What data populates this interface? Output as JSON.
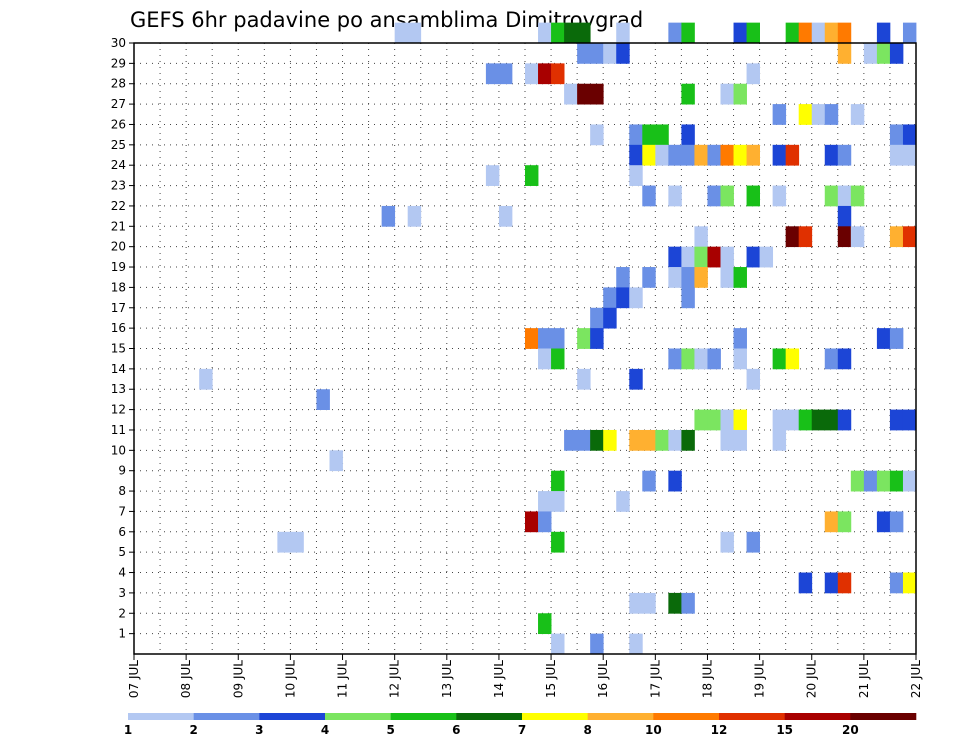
{
  "chart_data": {
    "type": "heatmap",
    "title": "GEFS 6hr padavine po ansamblima Dimitrovgrad",
    "x_tick_labels": [
      "07 JUL",
      "08 JUL",
      "09 JUL",
      "10 JUL",
      "11 JUL",
      "12 JUL",
      "13 JUL",
      "14 JUL",
      "15 JUL",
      "16 JUL",
      "17 JUL",
      "18 JUL",
      "19 JUL",
      "20 JUL",
      "21 JUL",
      "22 JUL"
    ],
    "y_tick_labels": [
      "1",
      "2",
      "3",
      "4",
      "5",
      "6",
      "7",
      "8",
      "9",
      "10",
      "11",
      "12",
      "13",
      "14",
      "15",
      "16",
      "17",
      "18",
      "19",
      "20",
      "21",
      "22",
      "23",
      "24",
      "25",
      "26",
      "27",
      "28",
      "29",
      "30"
    ],
    "xlim_days": [
      7,
      22
    ],
    "time_step_hours": 6,
    "colorbar": {
      "labels": [
        "1",
        "2",
        "3",
        "4",
        "5",
        "6",
        "7",
        "8",
        "10",
        "12",
        "15",
        "20"
      ],
      "colors": [
        "#b3c8f2",
        "#6a90e6",
        "#1c45d6",
        "#7be560",
        "#18c018",
        "#0a6a0a",
        "#ffff00",
        "#ffb030",
        "#ff7a00",
        "#e03000",
        "#a80000",
        "#6a0000"
      ]
    },
    "grid": true,
    "cell_format": "[day_start, member, color_index]",
    "cells": [
      [
        12.0,
        30,
        0
      ],
      [
        12.25,
        30,
        0
      ],
      [
        14.75,
        30,
        0
      ],
      [
        15.0,
        30,
        4
      ],
      [
        15.25,
        30,
        5
      ],
      [
        15.5,
        30,
        5
      ],
      [
        16.25,
        30,
        0
      ],
      [
        17.25,
        30,
        1
      ],
      [
        17.5,
        30,
        4
      ],
      [
        18.5,
        30,
        2
      ],
      [
        18.75,
        30,
        4
      ],
      [
        19.5,
        30,
        4
      ],
      [
        19.75,
        30,
        8
      ],
      [
        20.0,
        30,
        0
      ],
      [
        20.25,
        30,
        7
      ],
      [
        20.5,
        30,
        8
      ],
      [
        21.25,
        30,
        2
      ],
      [
        21.75,
        30,
        1
      ],
      [
        15.5,
        29,
        1
      ],
      [
        15.75,
        29,
        1
      ],
      [
        16.0,
        29,
        0
      ],
      [
        16.25,
        29,
        2
      ],
      [
        20.5,
        29,
        7
      ],
      [
        21.0,
        29,
        0
      ],
      [
        21.25,
        29,
        3
      ],
      [
        21.5,
        29,
        2
      ],
      [
        13.75,
        28,
        1
      ],
      [
        14.0,
        28,
        1
      ],
      [
        14.5,
        28,
        0
      ],
      [
        14.75,
        28,
        10
      ],
      [
        15.0,
        28,
        9
      ],
      [
        18.75,
        28,
        0
      ],
      [
        15.25,
        27,
        0
      ],
      [
        15.5,
        27,
        11
      ],
      [
        15.75,
        27,
        11
      ],
      [
        17.5,
        27,
        4
      ],
      [
        18.25,
        27,
        0
      ],
      [
        18.5,
        27,
        3
      ],
      [
        19.25,
        26,
        1
      ],
      [
        19.75,
        26,
        6
      ],
      [
        20.0,
        26,
        0
      ],
      [
        20.25,
        26,
        1
      ],
      [
        20.75,
        26,
        0
      ],
      [
        15.75,
        25,
        0
      ],
      [
        16.5,
        25,
        1
      ],
      [
        16.75,
        25,
        4
      ],
      [
        17.0,
        25,
        4
      ],
      [
        17.5,
        25,
        2
      ],
      [
        21.5,
        25,
        1
      ],
      [
        21.75,
        25,
        2
      ],
      [
        16.5,
        24,
        2
      ],
      [
        16.75,
        24,
        6
      ],
      [
        17.0,
        24,
        0
      ],
      [
        17.25,
        24,
        1
      ],
      [
        17.5,
        24,
        1
      ],
      [
        17.75,
        24,
        7
      ],
      [
        18.0,
        24,
        1
      ],
      [
        18.25,
        24,
        8
      ],
      [
        18.5,
        24,
        6
      ],
      [
        18.75,
        24,
        7
      ],
      [
        19.25,
        24,
        2
      ],
      [
        19.5,
        24,
        9
      ],
      [
        20.25,
        24,
        2
      ],
      [
        20.5,
        24,
        1
      ],
      [
        21.5,
        24,
        0
      ],
      [
        21.75,
        24,
        0
      ],
      [
        13.75,
        23,
        0
      ],
      [
        14.5,
        23,
        4
      ],
      [
        16.5,
        23,
        0
      ],
      [
        16.75,
        22,
        1
      ],
      [
        17.25,
        22,
        0
      ],
      [
        18.0,
        22,
        1
      ],
      [
        18.25,
        22,
        3
      ],
      [
        18.75,
        22,
        4
      ],
      [
        19.25,
        22,
        0
      ],
      [
        20.25,
        22,
        3
      ],
      [
        20.5,
        22,
        0
      ],
      [
        20.75,
        22,
        3
      ],
      [
        11.75,
        21,
        1
      ],
      [
        12.25,
        21,
        0
      ],
      [
        14.0,
        21,
        0
      ],
      [
        20.5,
        21,
        2
      ],
      [
        17.75,
        20,
        0
      ],
      [
        19.5,
        20,
        11
      ],
      [
        19.75,
        20,
        9
      ],
      [
        20.5,
        20,
        11
      ],
      [
        20.75,
        20,
        0
      ],
      [
        21.5,
        20,
        7
      ],
      [
        21.75,
        20,
        9
      ],
      [
        17.25,
        19,
        2
      ],
      [
        17.5,
        19,
        0
      ],
      [
        17.75,
        19,
        3
      ],
      [
        18.0,
        19,
        10
      ],
      [
        18.25,
        19,
        0
      ],
      [
        18.75,
        19,
        2
      ],
      [
        19.0,
        19,
        0
      ],
      [
        16.25,
        18,
        1
      ],
      [
        16.75,
        18,
        1
      ],
      [
        17.25,
        18,
        0
      ],
      [
        17.5,
        18,
        1
      ],
      [
        17.75,
        18,
        7
      ],
      [
        18.25,
        18,
        0
      ],
      [
        18.5,
        18,
        4
      ],
      [
        16.0,
        17,
        1
      ],
      [
        16.25,
        17,
        2
      ],
      [
        16.5,
        17,
        0
      ],
      [
        17.5,
        17,
        1
      ],
      [
        15.75,
        16,
        1
      ],
      [
        16.0,
        16,
        2
      ],
      [
        14.5,
        15,
        8
      ],
      [
        14.75,
        15,
        1
      ],
      [
        15.0,
        15,
        1
      ],
      [
        15.5,
        15,
        3
      ],
      [
        15.75,
        15,
        2
      ],
      [
        18.5,
        15,
        1
      ],
      [
        21.25,
        15,
        2
      ],
      [
        21.5,
        15,
        1
      ],
      [
        14.75,
        14,
        0
      ],
      [
        15.0,
        14,
        4
      ],
      [
        17.25,
        14,
        1
      ],
      [
        17.5,
        14,
        3
      ],
      [
        17.75,
        14,
        0
      ],
      [
        18.0,
        14,
        1
      ],
      [
        18.5,
        14,
        0
      ],
      [
        19.25,
        14,
        4
      ],
      [
        19.5,
        14,
        6
      ],
      [
        20.25,
        14,
        1
      ],
      [
        20.5,
        14,
        2
      ],
      [
        8.25,
        13,
        0
      ],
      [
        15.5,
        13,
        0
      ],
      [
        16.5,
        13,
        2
      ],
      [
        18.75,
        13,
        0
      ],
      [
        10.5,
        12,
        1
      ],
      [
        17.75,
        11,
        3
      ],
      [
        18.0,
        11,
        3
      ],
      [
        18.25,
        11,
        0
      ],
      [
        18.5,
        11,
        6
      ],
      [
        19.25,
        11,
        0
      ],
      [
        19.5,
        11,
        0
      ],
      [
        19.75,
        11,
        4
      ],
      [
        20.0,
        11,
        5
      ],
      [
        20.25,
        11,
        5
      ],
      [
        20.5,
        11,
        2
      ],
      [
        21.5,
        11,
        2
      ],
      [
        21.75,
        11,
        2
      ],
      [
        15.25,
        10,
        1
      ],
      [
        15.5,
        10,
        1
      ],
      [
        15.75,
        10,
        5
      ],
      [
        16.0,
        10,
        6
      ],
      [
        16.5,
        10,
        7
      ],
      [
        16.75,
        10,
        7
      ],
      [
        17.0,
        10,
        3
      ],
      [
        17.25,
        10,
        0
      ],
      [
        17.5,
        10,
        5
      ],
      [
        18.25,
        10,
        0
      ],
      [
        18.5,
        10,
        0
      ],
      [
        19.25,
        10,
        0
      ],
      [
        10.75,
        9,
        0
      ],
      [
        15.0,
        8,
        4
      ],
      [
        16.75,
        8,
        1
      ],
      [
        17.25,
        8,
        2
      ],
      [
        20.75,
        8,
        3
      ],
      [
        21.0,
        8,
        1
      ],
      [
        21.25,
        8,
        3
      ],
      [
        21.5,
        8,
        4
      ],
      [
        21.75,
        8,
        0
      ],
      [
        14.75,
        7,
        0
      ],
      [
        15.0,
        7,
        0
      ],
      [
        16.25,
        7,
        0
      ],
      [
        14.5,
        6,
        10
      ],
      [
        14.75,
        6,
        1
      ],
      [
        20.25,
        6,
        7
      ],
      [
        20.5,
        6,
        3
      ],
      [
        21.25,
        6,
        2
      ],
      [
        21.5,
        6,
        1
      ],
      [
        9.75,
        5,
        0
      ],
      [
        10.0,
        5,
        0
      ],
      [
        15.0,
        5,
        4
      ],
      [
        18.25,
        5,
        0
      ],
      [
        18.75,
        5,
        1
      ],
      [
        19.75,
        3,
        2
      ],
      [
        20.25,
        3,
        2
      ],
      [
        20.5,
        3,
        9
      ],
      [
        21.5,
        3,
        1
      ],
      [
        21.75,
        3,
        6
      ],
      [
        16.5,
        2,
        0
      ],
      [
        16.75,
        2,
        0
      ],
      [
        17.25,
        2,
        5
      ],
      [
        17.5,
        2,
        1
      ],
      [
        14.75,
        1,
        4
      ],
      [
        15.0,
        0,
        0
      ],
      [
        15.75,
        0,
        1
      ],
      [
        16.5,
        0,
        0
      ]
    ]
  }
}
